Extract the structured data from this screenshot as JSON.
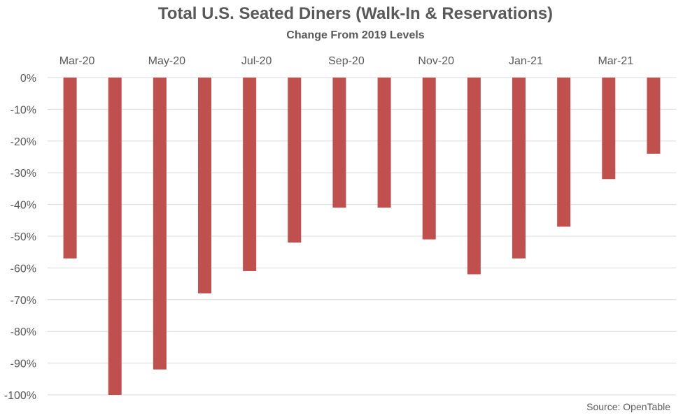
{
  "chart_data": {
    "type": "bar",
    "title": "Total U.S. Seated Diners (Walk-In & Reservations)",
    "subtitle": "Change From 2019 Levels",
    "source": "Source: OpenTable",
    "categories": [
      "Mar-20",
      "Apr-20",
      "May-20",
      "Jun-20",
      "Jul-20",
      "Aug-20",
      "Sep-20",
      "Oct-20",
      "Nov-20",
      "Dec-20",
      "Jan-21",
      "Feb-21",
      "Mar-21",
      "Apr-21"
    ],
    "x_tick_labels": [
      "Mar-20",
      "May-20",
      "Jul-20",
      "Sep-20",
      "Nov-20",
      "Jan-21",
      "Mar-21"
    ],
    "values": [
      -57,
      -100,
      -92,
      -68,
      -61,
      -52,
      -41,
      -41,
      -51,
      -62,
      -57,
      -47,
      -32,
      -24
    ],
    "ylim": [
      -100,
      0
    ],
    "y_tick_labels": [
      "0%",
      "-10%",
      "-20%",
      "-30%",
      "-40%",
      "-50%",
      "-60%",
      "-70%",
      "-80%",
      "-90%",
      "-100%"
    ],
    "grid": true,
    "bar_color": "#C0504D",
    "gridline_color": "#D9D9D9"
  }
}
